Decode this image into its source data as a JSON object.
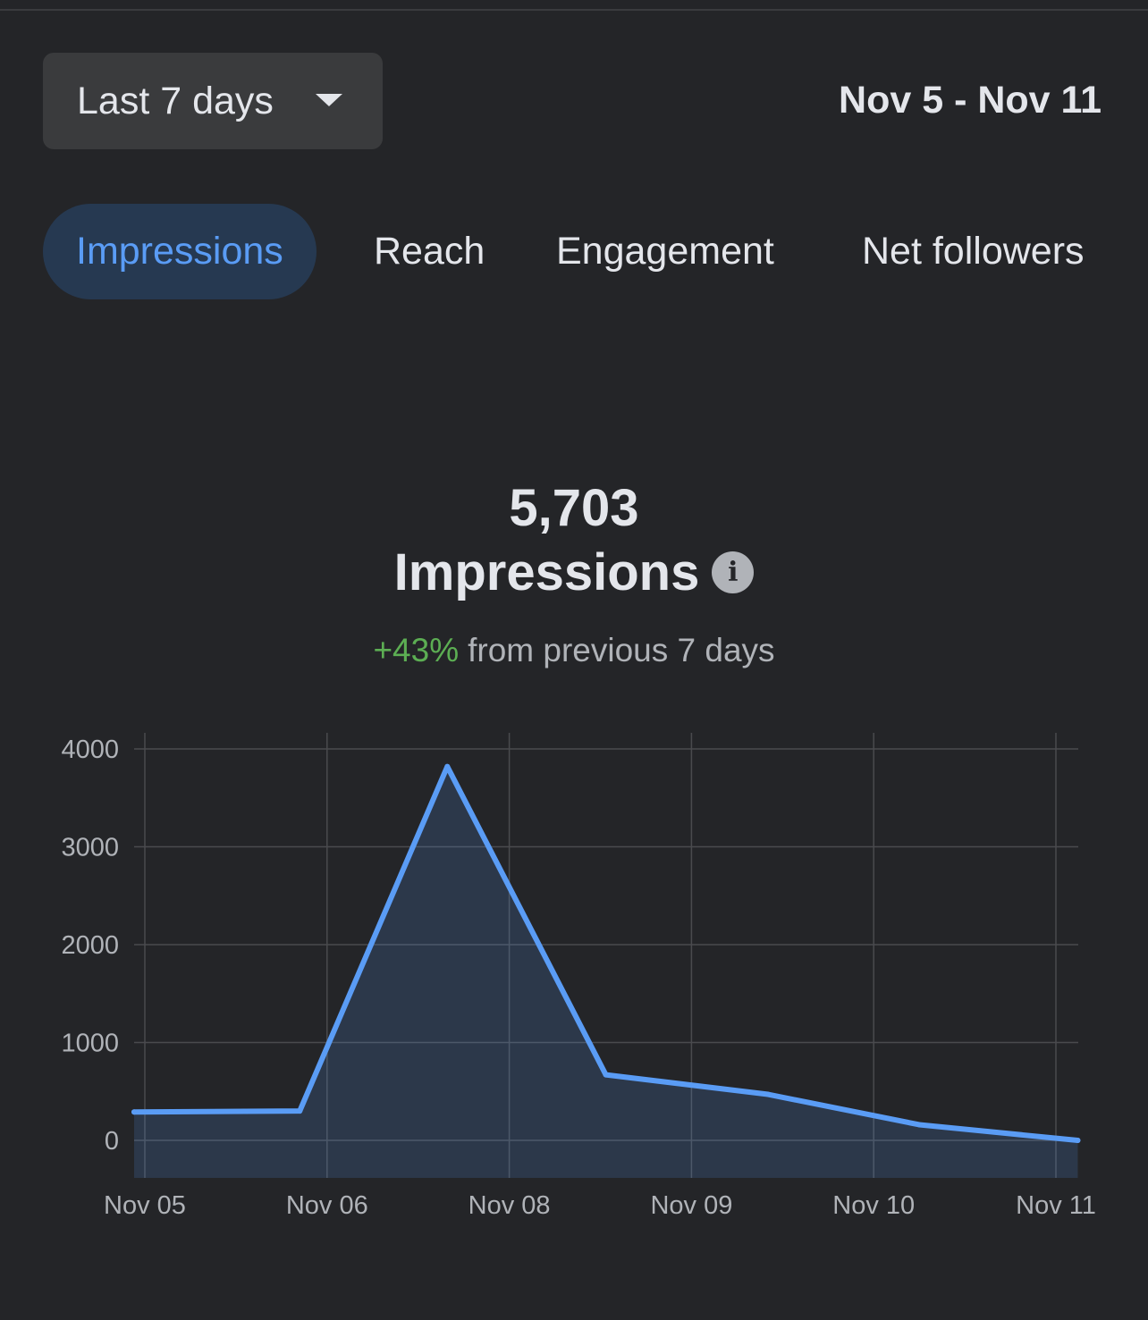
{
  "range_selector": {
    "label": "Last 7 days"
  },
  "date_range": "Nov 5 - Nov 11",
  "tabs": [
    {
      "label": "Impressions",
      "active": true
    },
    {
      "label": "Reach",
      "active": false
    },
    {
      "label": "Engagement",
      "active": false
    },
    {
      "label": "Net followers",
      "active": false
    }
  ],
  "summary": {
    "total": "5,703",
    "metric": "Impressions",
    "change": "+43%",
    "change_text": "from previous 7 days"
  },
  "colors": {
    "accent": "#5a9cf5",
    "positive": "#5cae53",
    "background": "#242528"
  },
  "chart_data": {
    "type": "area",
    "x_tick_labels": [
      "Nov 05",
      "Nov 06",
      "Nov 08",
      "Nov 09",
      "Nov 10",
      "Nov 11"
    ],
    "y_ticks": [
      0,
      1000,
      2000,
      3000,
      4000
    ],
    "ylim": [
      0,
      4000
    ],
    "grid": true,
    "points": [
      {
        "x": 0.0,
        "y": 290
      },
      {
        "x": 0.85,
        "y": 300
      },
      {
        "x": 1.66,
        "y": 3820
      },
      {
        "x": 2.53,
        "y": 670
      },
      {
        "x": 3.42,
        "y": 470
      },
      {
        "x": 4.25,
        "y": 160
      },
      {
        "x": 5.12,
        "y": 0
      }
    ],
    "series": [
      {
        "values": [
          290,
          300,
          3820,
          670,
          470,
          160,
          0
        ]
      }
    ]
  }
}
